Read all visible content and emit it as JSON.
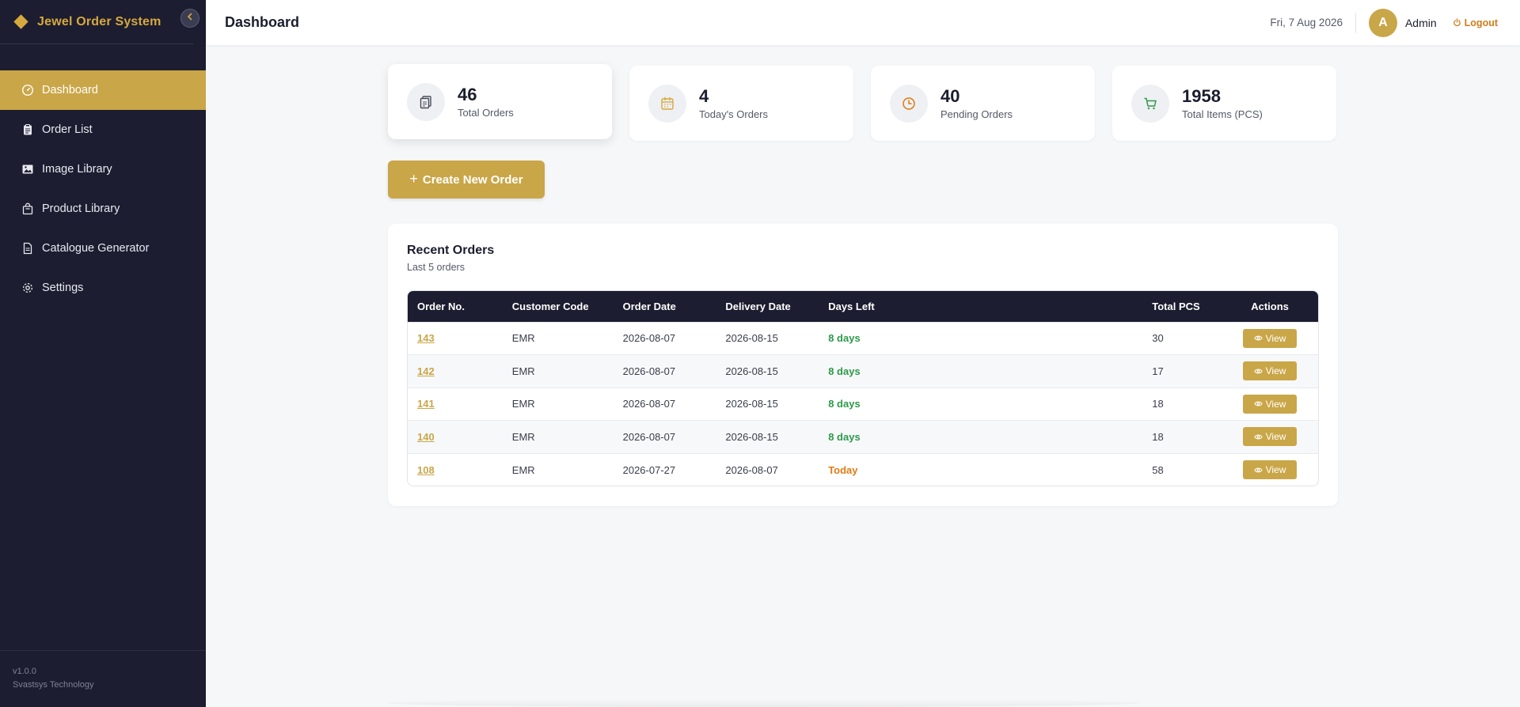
{
  "app": {
    "title": "Jewel Order System",
    "version": "v1.0.0",
    "company": "Svastsys Technology"
  },
  "colors": {
    "accent": "#c9a648",
    "sidebar": "#1c1d30",
    "green": "#2d9a4b",
    "orange": "#e07b12"
  },
  "sidebar": {
    "items": [
      {
        "label": "Dashboard",
        "icon": "dashboard-gauge-icon",
        "active": true
      },
      {
        "label": "Order List",
        "icon": "clipboard-icon",
        "active": false
      },
      {
        "label": "Image Library",
        "icon": "image-icon",
        "active": false
      },
      {
        "label": "Product Library",
        "icon": "shopping-bag-icon",
        "active": false
      },
      {
        "label": "Catalogue Generator",
        "icon": "document-icon",
        "active": false
      },
      {
        "label": "Settings",
        "icon": "gear-icon",
        "active": false
      }
    ]
  },
  "header": {
    "title": "Dashboard",
    "date": "Fri, 7 Aug 2026",
    "avatar_letter": "A",
    "username": "Admin",
    "logout_label": "Logout"
  },
  "stats": [
    {
      "value": "46",
      "label": "Total Orders",
      "icon": "copy-documents-icon"
    },
    {
      "value": "4",
      "label": "Today's Orders",
      "icon": "calendar-icon"
    },
    {
      "value": "40",
      "label": "Pending Orders",
      "icon": "clock-icon"
    },
    {
      "value": "1958",
      "label": "Total Items (PCS)",
      "icon": "cart-icon"
    }
  ],
  "create_button": {
    "label": "Create New Order"
  },
  "recent_orders": {
    "title": "Recent Orders",
    "subtitle": "Last 5 orders",
    "columns": [
      "Order No.",
      "Customer Code",
      "Order Date",
      "Delivery Date",
      "Days Left",
      "Total PCS",
      "Actions"
    ],
    "view_label": "View",
    "rows": [
      {
        "order_no": "143",
        "customer": "EMR",
        "order_date": "2026-08-07",
        "delivery_date": "2026-08-15",
        "days_left": "8 days",
        "status": "green",
        "pcs": "30"
      },
      {
        "order_no": "142",
        "customer": "EMR",
        "order_date": "2026-08-07",
        "delivery_date": "2026-08-15",
        "days_left": "8 days",
        "status": "green",
        "pcs": "17"
      },
      {
        "order_no": "141",
        "customer": "EMR",
        "order_date": "2026-08-07",
        "delivery_date": "2026-08-15",
        "days_left": "8 days",
        "status": "green",
        "pcs": "18"
      },
      {
        "order_no": "140",
        "customer": "EMR",
        "order_date": "2026-08-07",
        "delivery_date": "2026-08-15",
        "days_left": "8 days",
        "status": "green",
        "pcs": "18"
      },
      {
        "order_no": "108",
        "customer": "EMR",
        "order_date": "2026-07-27",
        "delivery_date": "2026-08-07",
        "days_left": "Today",
        "status": "orange",
        "pcs": "58"
      }
    ]
  }
}
